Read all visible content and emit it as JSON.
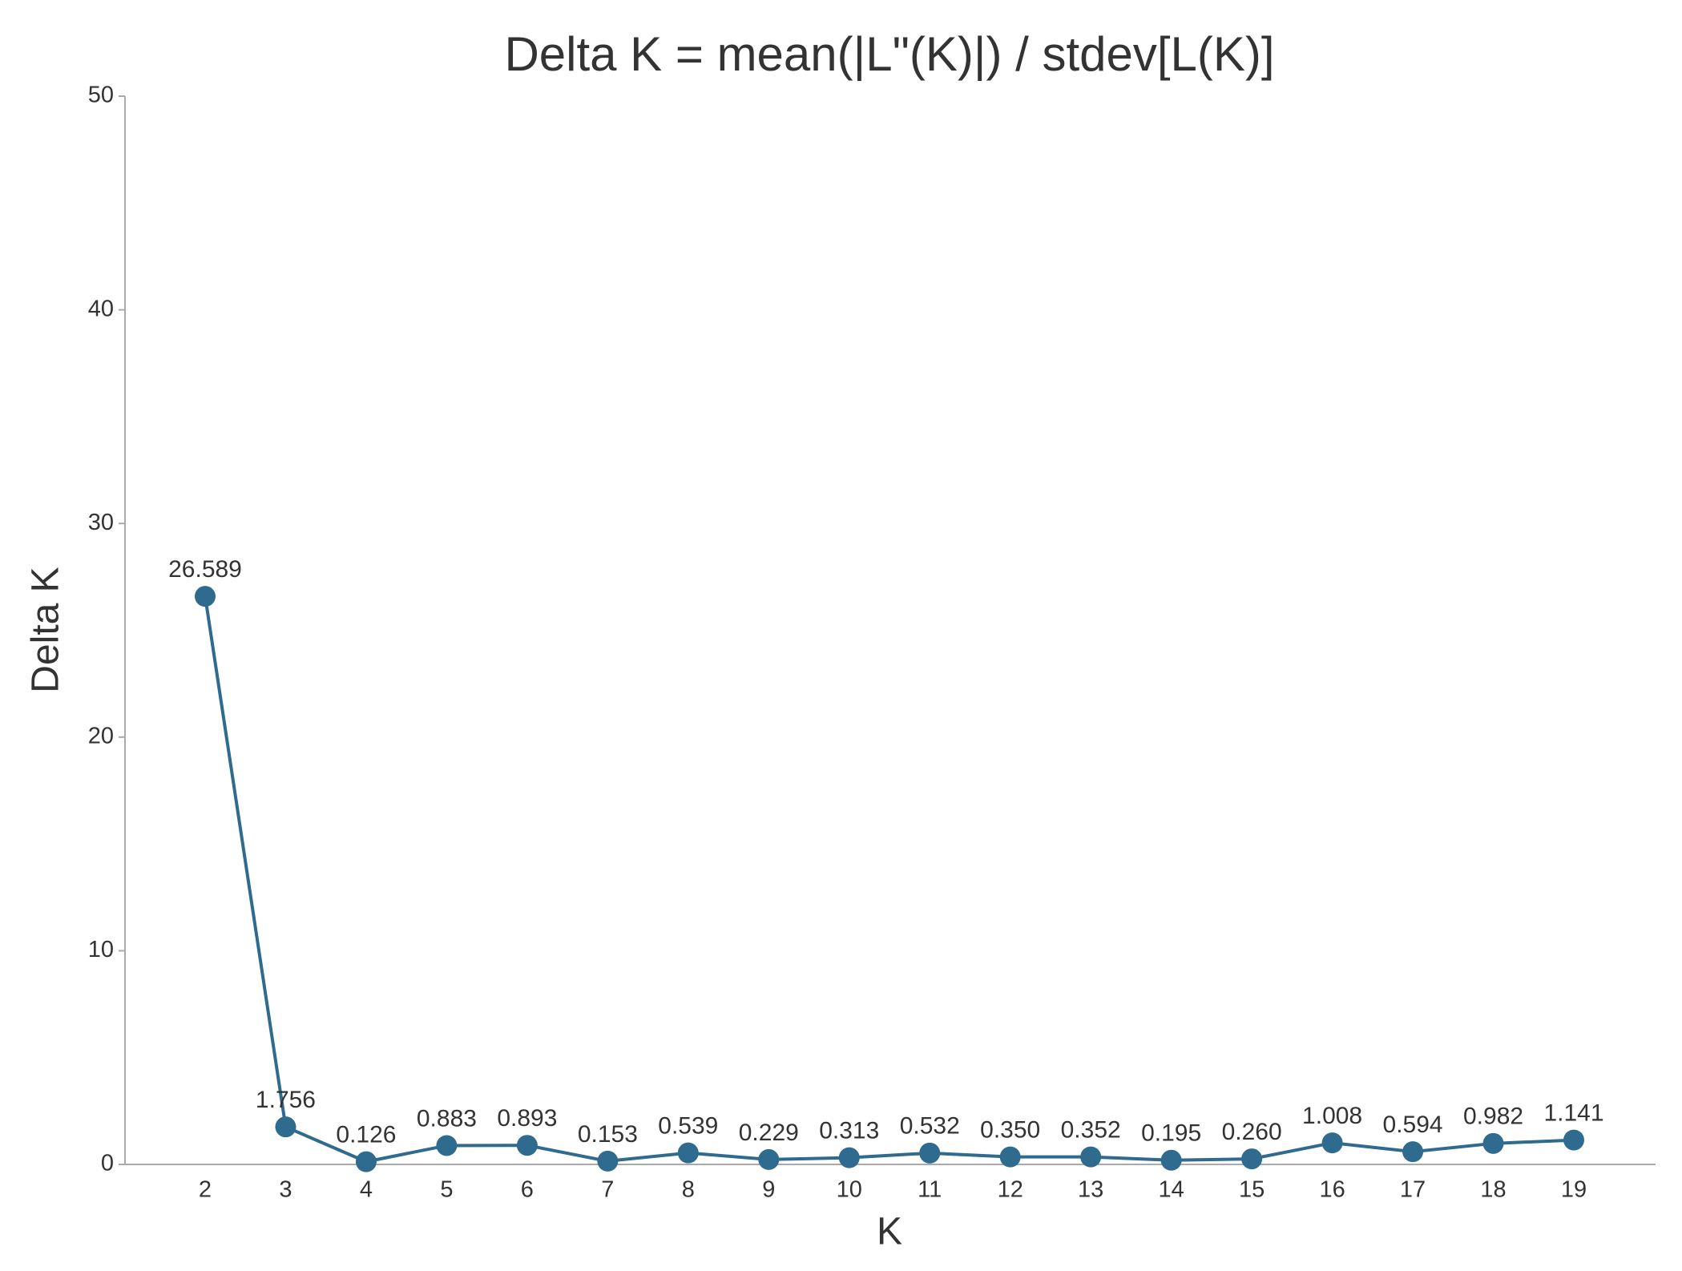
{
  "chart_data": {
    "type": "line",
    "title": "Delta K = mean(|L\"(K)|) / stdev[L(K)]",
    "x_label": "K",
    "y_label": "Delta K",
    "categories": [
      "2",
      "3",
      "4",
      "5",
      "6",
      "7",
      "8",
      "9",
      "10",
      "11",
      "12",
      "13",
      "14",
      "15",
      "16",
      "17",
      "18",
      "19"
    ],
    "values": [
      26.589,
      1.756,
      0.126,
      0.883,
      0.893,
      0.153,
      0.539,
      0.229,
      0.313,
      0.532,
      0.35,
      0.352,
      0.195,
      0.26,
      1.008,
      0.594,
      0.982,
      1.141
    ],
    "value_labels": [
      "26.589",
      "1.756",
      "0.126",
      "0.883",
      "0.893",
      "0.153",
      "0.539",
      "0.229",
      "0.313",
      "0.532",
      "0.350",
      "0.352",
      "0.195",
      "0.260",
      "1.008",
      "0.594",
      "0.982",
      "1.141"
    ],
    "color": "#2f6a8f",
    "ylim": [
      0,
      50
    ],
    "yticks": [
      0,
      10,
      20,
      30,
      40,
      50
    ],
    "grid": false
  }
}
